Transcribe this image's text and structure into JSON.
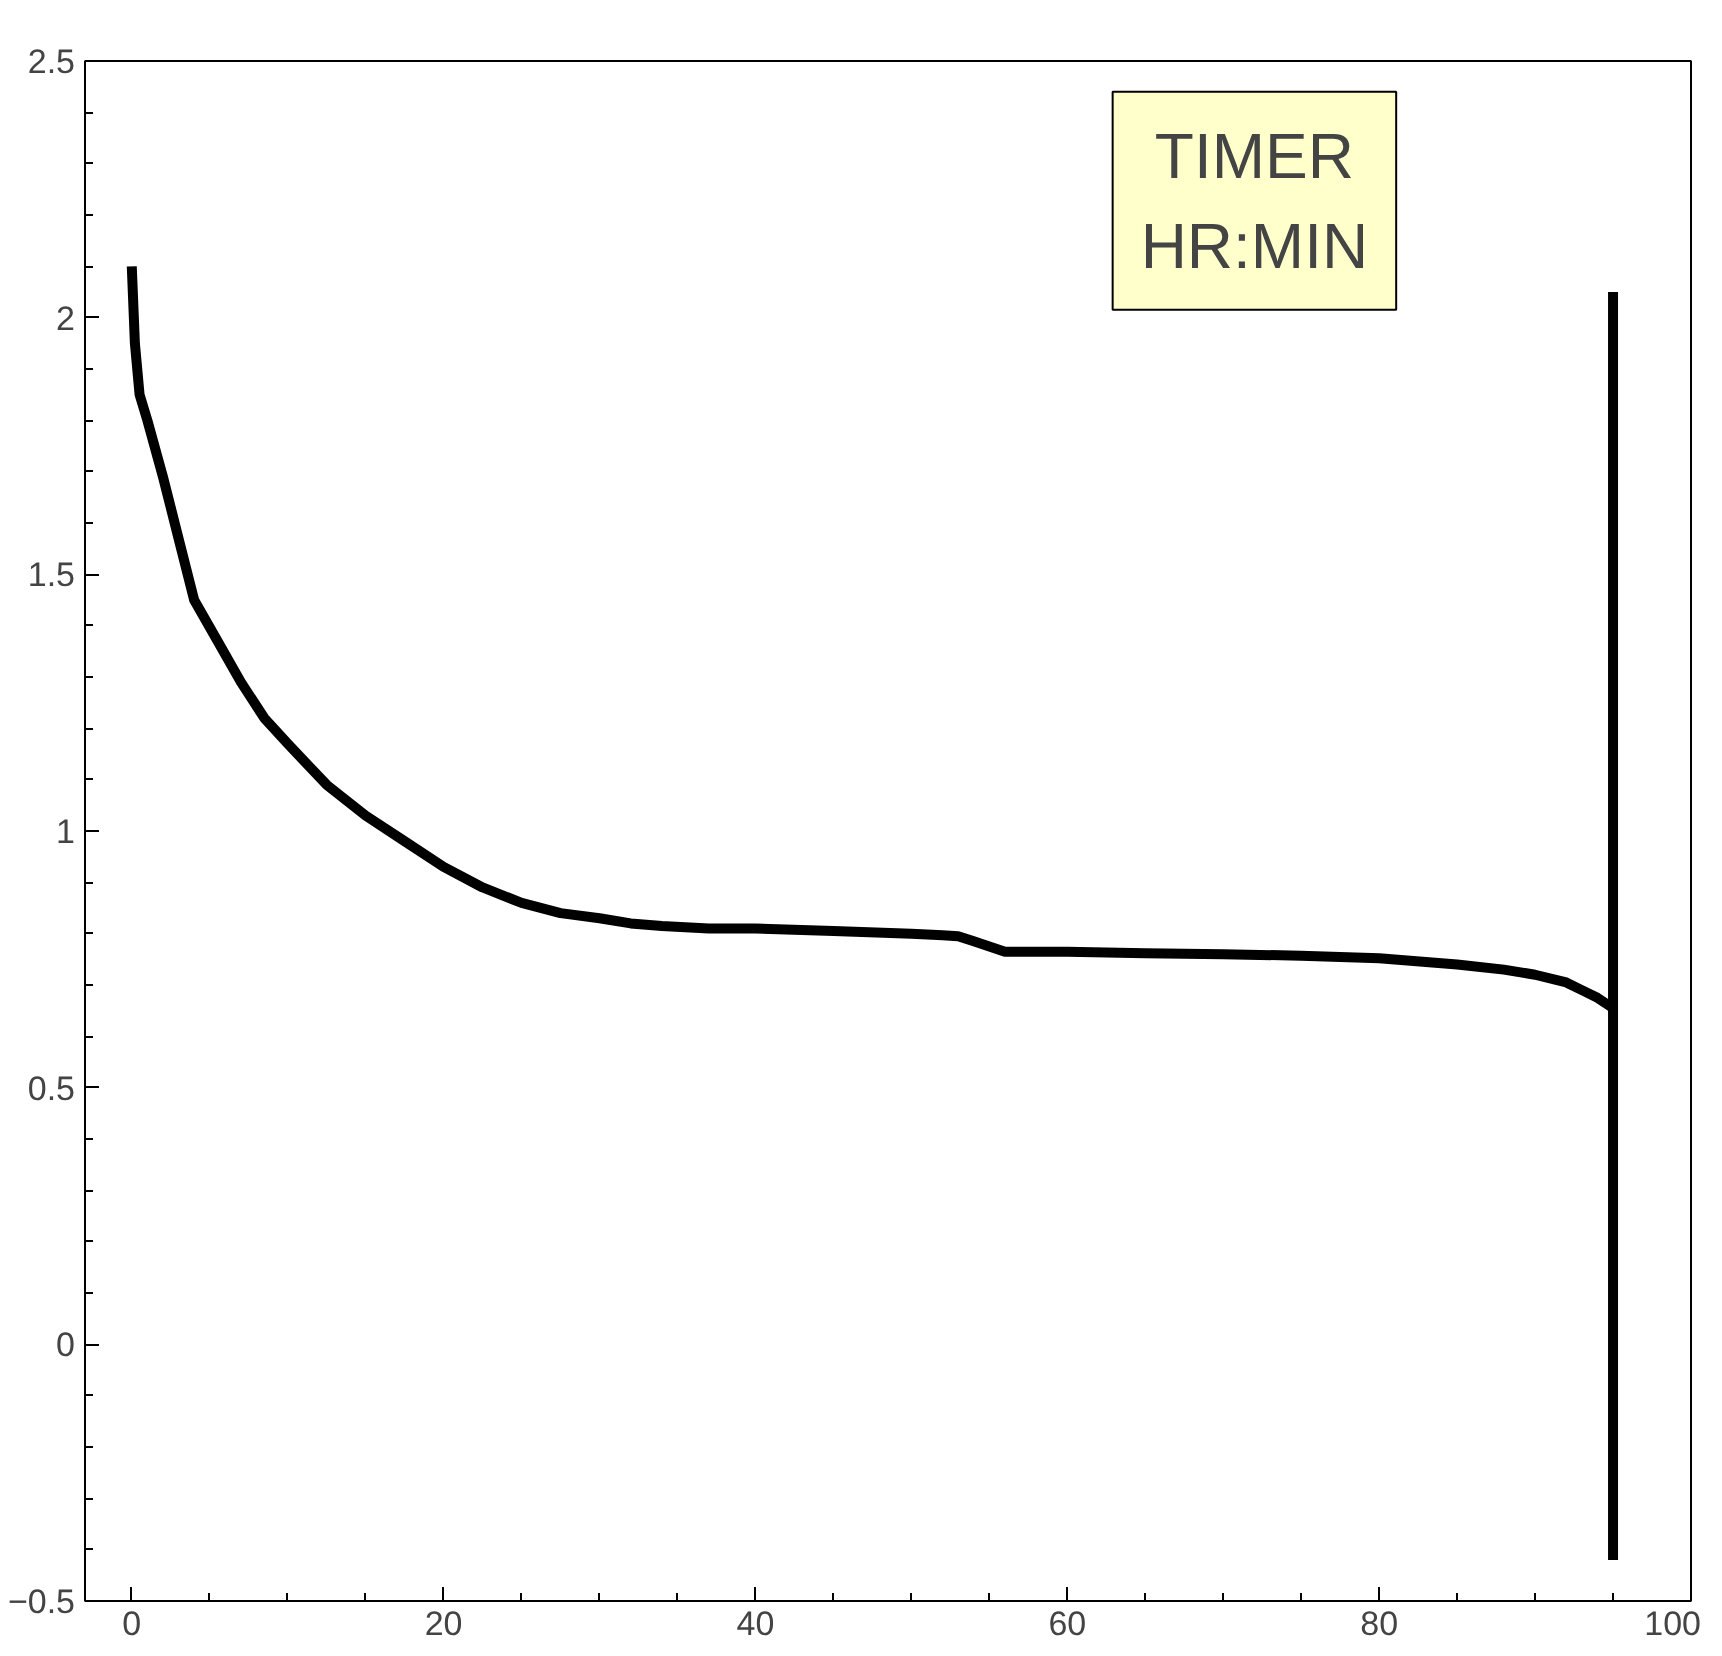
{
  "chart_data": {
    "type": "line",
    "xlim": [
      -3,
      100
    ],
    "ylim": [
      -0.5,
      2.5
    ],
    "xticks": [
      0,
      20,
      40,
      60,
      80,
      100
    ],
    "yticks": [
      -0.5,
      0,
      0.5,
      1,
      1.5,
      2,
      2.5
    ],
    "grid": false,
    "annotations": [
      "TIMER\nHR:MIN"
    ],
    "series": [
      {
        "color": "#000000",
        "x": [
          0,
          0.2,
          0.5,
          1,
          2,
          3,
          4,
          5.5,
          7,
          8.5,
          10,
          12.5,
          15,
          17.5,
          20,
          22.5,
          25,
          27.5,
          30,
          32,
          34,
          37,
          40,
          45,
          50,
          52,
          53,
          54,
          55,
          56,
          58,
          60,
          65,
          70,
          75,
          80,
          85,
          88,
          90,
          92,
          93,
          94,
          95
        ],
        "values": [
          2.1,
          1.95,
          1.85,
          1.8,
          1.69,
          1.57,
          1.45,
          1.37,
          1.29,
          1.22,
          1.17,
          1.09,
          1.03,
          0.98,
          0.93,
          0.89,
          0.86,
          0.84,
          0.83,
          0.82,
          0.815,
          0.81,
          0.81,
          0.805,
          0.8,
          0.797,
          0.795,
          0.785,
          0.775,
          0.765,
          0.765,
          0.765,
          0.762,
          0.76,
          0.757,
          0.752,
          0.74,
          0.73,
          0.72,
          0.705,
          0.69,
          0.675,
          0.655
        ]
      },
      {
        "color": "#000000",
        "x": [
          95,
          95
        ],
        "values": [
          -0.42,
          2.05
        ]
      }
    ]
  }
}
